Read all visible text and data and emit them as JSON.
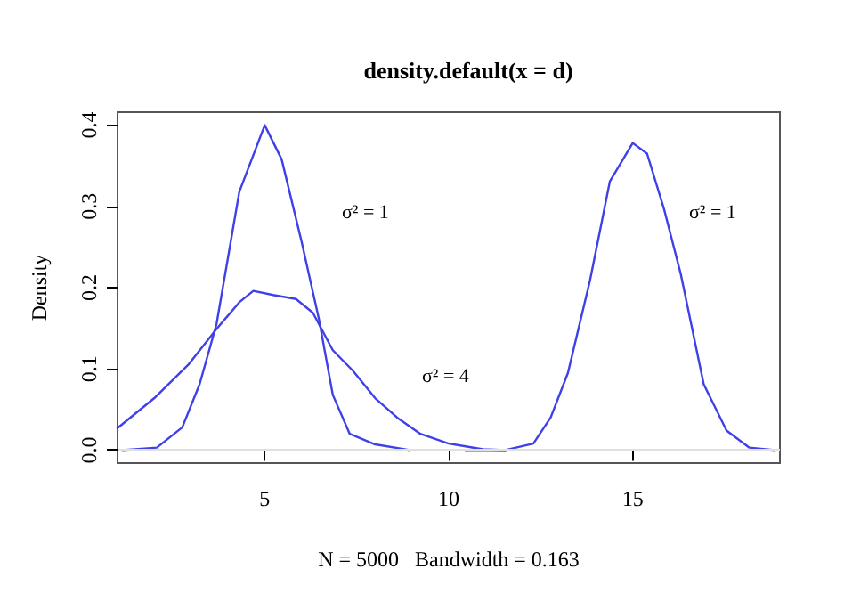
{
  "chart_data": {
    "type": "line",
    "title": "density.default(x = d)",
    "xlabel": "N = 5000   Bandwidth = 0.163",
    "ylabel": "Density",
    "xlim": [
      1,
      19
    ],
    "ylim": [
      -0.016,
      0.416
    ],
    "xticks": [
      5,
      10,
      15
    ],
    "yticks": [
      {
        "value": 0,
        "label": "0.0"
      },
      0.1,
      0.2,
      0.3,
      0.4
    ],
    "grid": false,
    "marker": "none",
    "line_style": "solid",
    "ref_lines": [
      {
        "axis": "y",
        "value": 0,
        "color": "#e0e0e0"
      }
    ],
    "annotations": [
      "σ² = 1",
      "σ² = 1",
      "σ² = 4"
    ],
    "series": [
      {
        "color": "#4040e8",
        "x": [
          1.14,
          2.07,
          2.76,
          3.23,
          3.69,
          4.31,
          5.0,
          5.46,
          6.0,
          6.47,
          6.85,
          7.31,
          8.0,
          8.94
        ],
        "values": [
          0,
          0.003,
          0.028,
          0.081,
          0.155,
          0.318,
          0.4,
          0.358,
          0.257,
          0.162,
          0.068,
          0.02,
          0.007,
          0
        ]
      },
      {
        "color": "#4040e8",
        "x": [
          1.0,
          2.0,
          2.92,
          3.69,
          4.31,
          4.69,
          5.23,
          5.85,
          6.31,
          6.85,
          7.39,
          8.0,
          8.6,
          9.23,
          10.0,
          10.93,
          11.54
        ],
        "values": [
          0.027,
          0.064,
          0.105,
          0.149,
          0.182,
          0.196,
          0.191,
          0.186,
          0.169,
          0.123,
          0.098,
          0.064,
          0.04,
          0.02,
          0.008,
          0.001,
          0
        ]
      },
      {
        "color": "#4040e8",
        "x": [
          10.46,
          11.54,
          12.3,
          12.77,
          13.24,
          13.84,
          14.38,
          15.0,
          15.39,
          15.85,
          16.31,
          16.93,
          17.55,
          18.17,
          18.86
        ],
        "values": [
          0,
          0,
          0.008,
          0.04,
          0.095,
          0.209,
          0.331,
          0.378,
          0.365,
          0.297,
          0.216,
          0.081,
          0.024,
          0.003,
          0
        ]
      }
    ]
  }
}
